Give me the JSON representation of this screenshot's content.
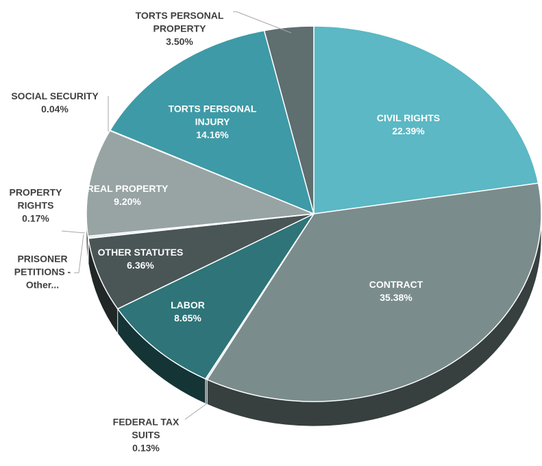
{
  "chart_data": {
    "type": "pie3d",
    "categories": [
      "CIVIL RIGHTS",
      "CONTRACT",
      "FEDERAL TAX SUITS",
      "LABOR",
      "OTHER STATUTES",
      "PRISONER PETITIONS - Other...",
      "PROPERTY RIGHTS",
      "REAL PROPERTY",
      "SOCIAL SECURITY",
      "TORTS PERSONAL INJURY",
      "TORTS PERSONAL PROPERTY"
    ],
    "values": [
      22.39,
      35.38,
      0.13,
      8.65,
      6.36,
      0.02,
      0.17,
      9.2,
      0.04,
      14.16,
      3.5
    ],
    "value_labels": [
      "22.39%",
      "35.38%",
      "0.13%",
      "8.65%",
      "6.36%",
      null,
      "0.17%",
      "9.20%",
      "0.04%",
      "14.16%",
      "3.50%"
    ],
    "colors": [
      "#5bb8c4",
      "#7b8c8c",
      "#c9dcdc",
      "#2e7478",
      "#4a5556",
      "#b8c6c6",
      "#d7e0e0",
      "#98a4a4",
      "#c0d0d0",
      "#3e9aa6",
      "#5f6e6e"
    ]
  }
}
